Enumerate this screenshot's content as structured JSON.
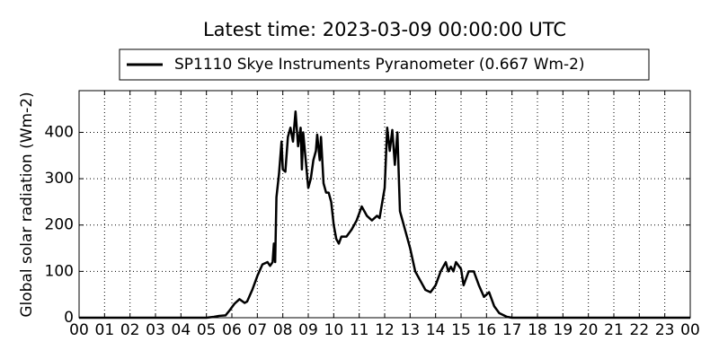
{
  "chart_data": {
    "type": "line",
    "title": "Latest time: 2023-03-09 00:00:00 UTC",
    "ylabel": "Global solar radiation (Wm-2)",
    "x": [
      0,
      5.0,
      5.3,
      5.5,
      5.75,
      5.9,
      6.1,
      6.3,
      6.5,
      6.6,
      6.8,
      7.0,
      7.2,
      7.4,
      7.5,
      7.6,
      7.65,
      7.7,
      7.75,
      7.85,
      7.95,
      8.0,
      8.1,
      8.2,
      8.3,
      8.4,
      8.5,
      8.6,
      8.7,
      8.75,
      8.8,
      8.9,
      9.0,
      9.1,
      9.2,
      9.3,
      9.35,
      9.45,
      9.5,
      9.6,
      9.7,
      9.8,
      9.9,
      10.0,
      10.1,
      10.2,
      10.3,
      10.5,
      10.7,
      10.9,
      11.1,
      11.3,
      11.5,
      11.7,
      11.8,
      12.0,
      12.1,
      12.2,
      12.3,
      12.4,
      12.5,
      12.6,
      12.8,
      13.0,
      13.2,
      13.4,
      13.6,
      13.8,
      14.0,
      14.2,
      14.4,
      14.5,
      14.6,
      14.7,
      14.8,
      15.0,
      15.1,
      15.3,
      15.5,
      15.7,
      15.9,
      16.1,
      16.3,
      16.5,
      16.8,
      17.0,
      24
    ],
    "series": [
      {
        "name": "SP1110 Skye Instruments Pyranometer (0.667 Wm-2)",
        "color": "#000000",
        "values": [
          0,
          0,
          2,
          4,
          5,
          15,
          30,
          40,
          32,
          35,
          60,
          90,
          115,
          120,
          112,
          120,
          160,
          120,
          260,
          310,
          380,
          320,
          315,
          390,
          410,
          380,
          445,
          370,
          410,
          320,
          400,
          340,
          280,
          300,
          340,
          360,
          395,
          340,
          390,
          290,
          270,
          270,
          250,
          200,
          170,
          160,
          175,
          175,
          190,
          210,
          240,
          220,
          210,
          220,
          215,
          280,
          410,
          360,
          405,
          330,
          400,
          230,
          190,
          150,
          100,
          80,
          60,
          55,
          70,
          100,
          120,
          100,
          110,
          100,
          120,
          105,
          70,
          100,
          100,
          70,
          45,
          55,
          25,
          10,
          2,
          0,
          0
        ]
      }
    ],
    "xlim": [
      0,
      24
    ],
    "xticks": [
      {
        "value": 0,
        "label": "00"
      },
      {
        "value": 1,
        "label": "01"
      },
      {
        "value": 2,
        "label": "02"
      },
      {
        "value": 3,
        "label": "03"
      },
      {
        "value": 4,
        "label": "04"
      },
      {
        "value": 5,
        "label": "05"
      },
      {
        "value": 6,
        "label": "06"
      },
      {
        "value": 7,
        "label": "07"
      },
      {
        "value": 8,
        "label": "08"
      },
      {
        "value": 9,
        "label": "09"
      },
      {
        "value": 10,
        "label": "10"
      },
      {
        "value": 11,
        "label": "11"
      },
      {
        "value": 12,
        "label": "12"
      },
      {
        "value": 13,
        "label": "13"
      },
      {
        "value": 14,
        "label": "14"
      },
      {
        "value": 15,
        "label": "15"
      },
      {
        "value": 16,
        "label": "16"
      },
      {
        "value": 17,
        "label": "17"
      },
      {
        "value": 18,
        "label": "18"
      },
      {
        "value": 19,
        "label": "19"
      },
      {
        "value": 20,
        "label": "20"
      },
      {
        "value": 21,
        "label": "21"
      },
      {
        "value": 22,
        "label": "22"
      },
      {
        "value": 23,
        "label": "23"
      },
      {
        "value": 24,
        "label": "00"
      }
    ],
    "ylim": [
      0,
      490
    ],
    "yticks": [
      0,
      100,
      200,
      300,
      400
    ],
    "grid": true,
    "legend": "top"
  }
}
